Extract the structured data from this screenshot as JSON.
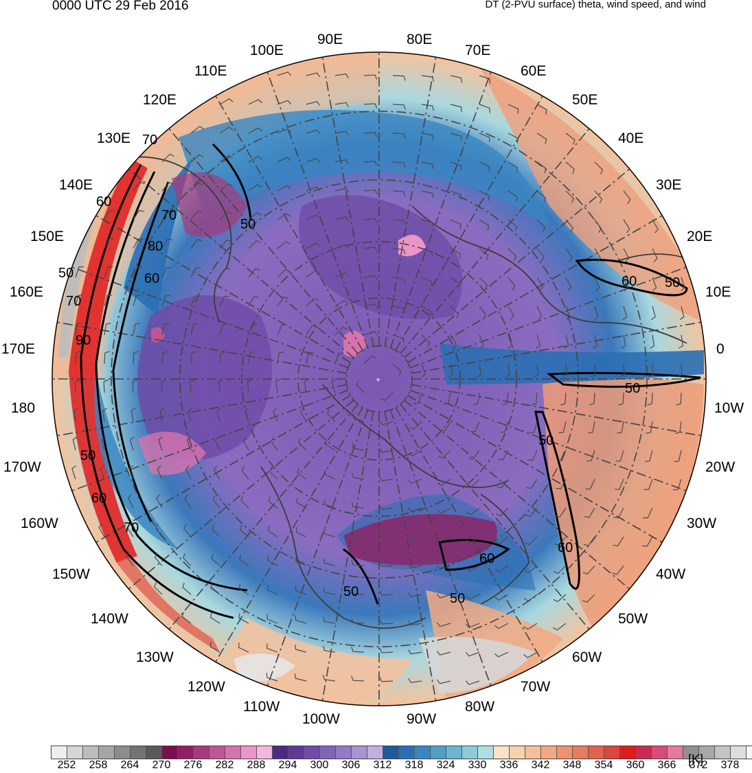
{
  "header": {
    "valid_time": "0000 UTC 29 Feb 2016",
    "title": "DT (2-PVU surface) theta, wind speed, and wind"
  },
  "map": {
    "projection": "north-polar-stereographic",
    "longitude_labels": [
      "0",
      "10E",
      "20E",
      "30E",
      "40E",
      "50E",
      "60E",
      "70E",
      "80E",
      "90E",
      "100E",
      "110E",
      "120E",
      "130E",
      "140E",
      "150E",
      "160E",
      "170E",
      "180",
      "170W",
      "160W",
      "150W",
      "140W",
      "130W",
      "120W",
      "110W",
      "100W",
      "90W",
      "80W",
      "70W",
      "60W",
      "50W",
      "40W",
      "30W",
      "20W",
      "10W"
    ],
    "wind_speed_contour_labels": [
      "50",
      "60",
      "70",
      "80",
      "90"
    ]
  },
  "colorbar": {
    "units": "[K]",
    "tick_labels": [
      "252",
      "258",
      "264",
      "270",
      "276",
      "282",
      "288",
      "294",
      "300",
      "306",
      "312",
      "318",
      "324",
      "330",
      "336",
      "342",
      "348",
      "354",
      "360",
      "366",
      "372",
      "378"
    ],
    "colors": [
      "#eeeeee",
      "#d6d6d6",
      "#bdbdbd",
      "#a6a6a6",
      "#8c8c8c",
      "#737373",
      "#5a5a5a",
      "#7a0f4e",
      "#8f2063",
      "#a8397b",
      "#c05593",
      "#d673ae",
      "#ea96c8",
      "#f3b6dd",
      "#4c2a80",
      "#5d3a96",
      "#6e4ca8",
      "#8064b8",
      "#9479c6",
      "#a993d3",
      "#c0b0e2",
      "#1d5a9e",
      "#2b6fb3",
      "#3a86c2",
      "#4f9ec8",
      "#6ab6cf",
      "#8ccbd6",
      "#b2dde2",
      "#fbe3c7",
      "#f8d2ae",
      "#f5bf98",
      "#f2a983",
      "#ee936f",
      "#e87b5f",
      "#e2614f",
      "#d9463f",
      "#e01b1c",
      "#cc2a55",
      "#d84a78",
      "#e47a9c",
      "#909090",
      "#a8a8a8",
      "#c4c4c4",
      "#dedede",
      "#f7f7f7"
    ]
  }
}
